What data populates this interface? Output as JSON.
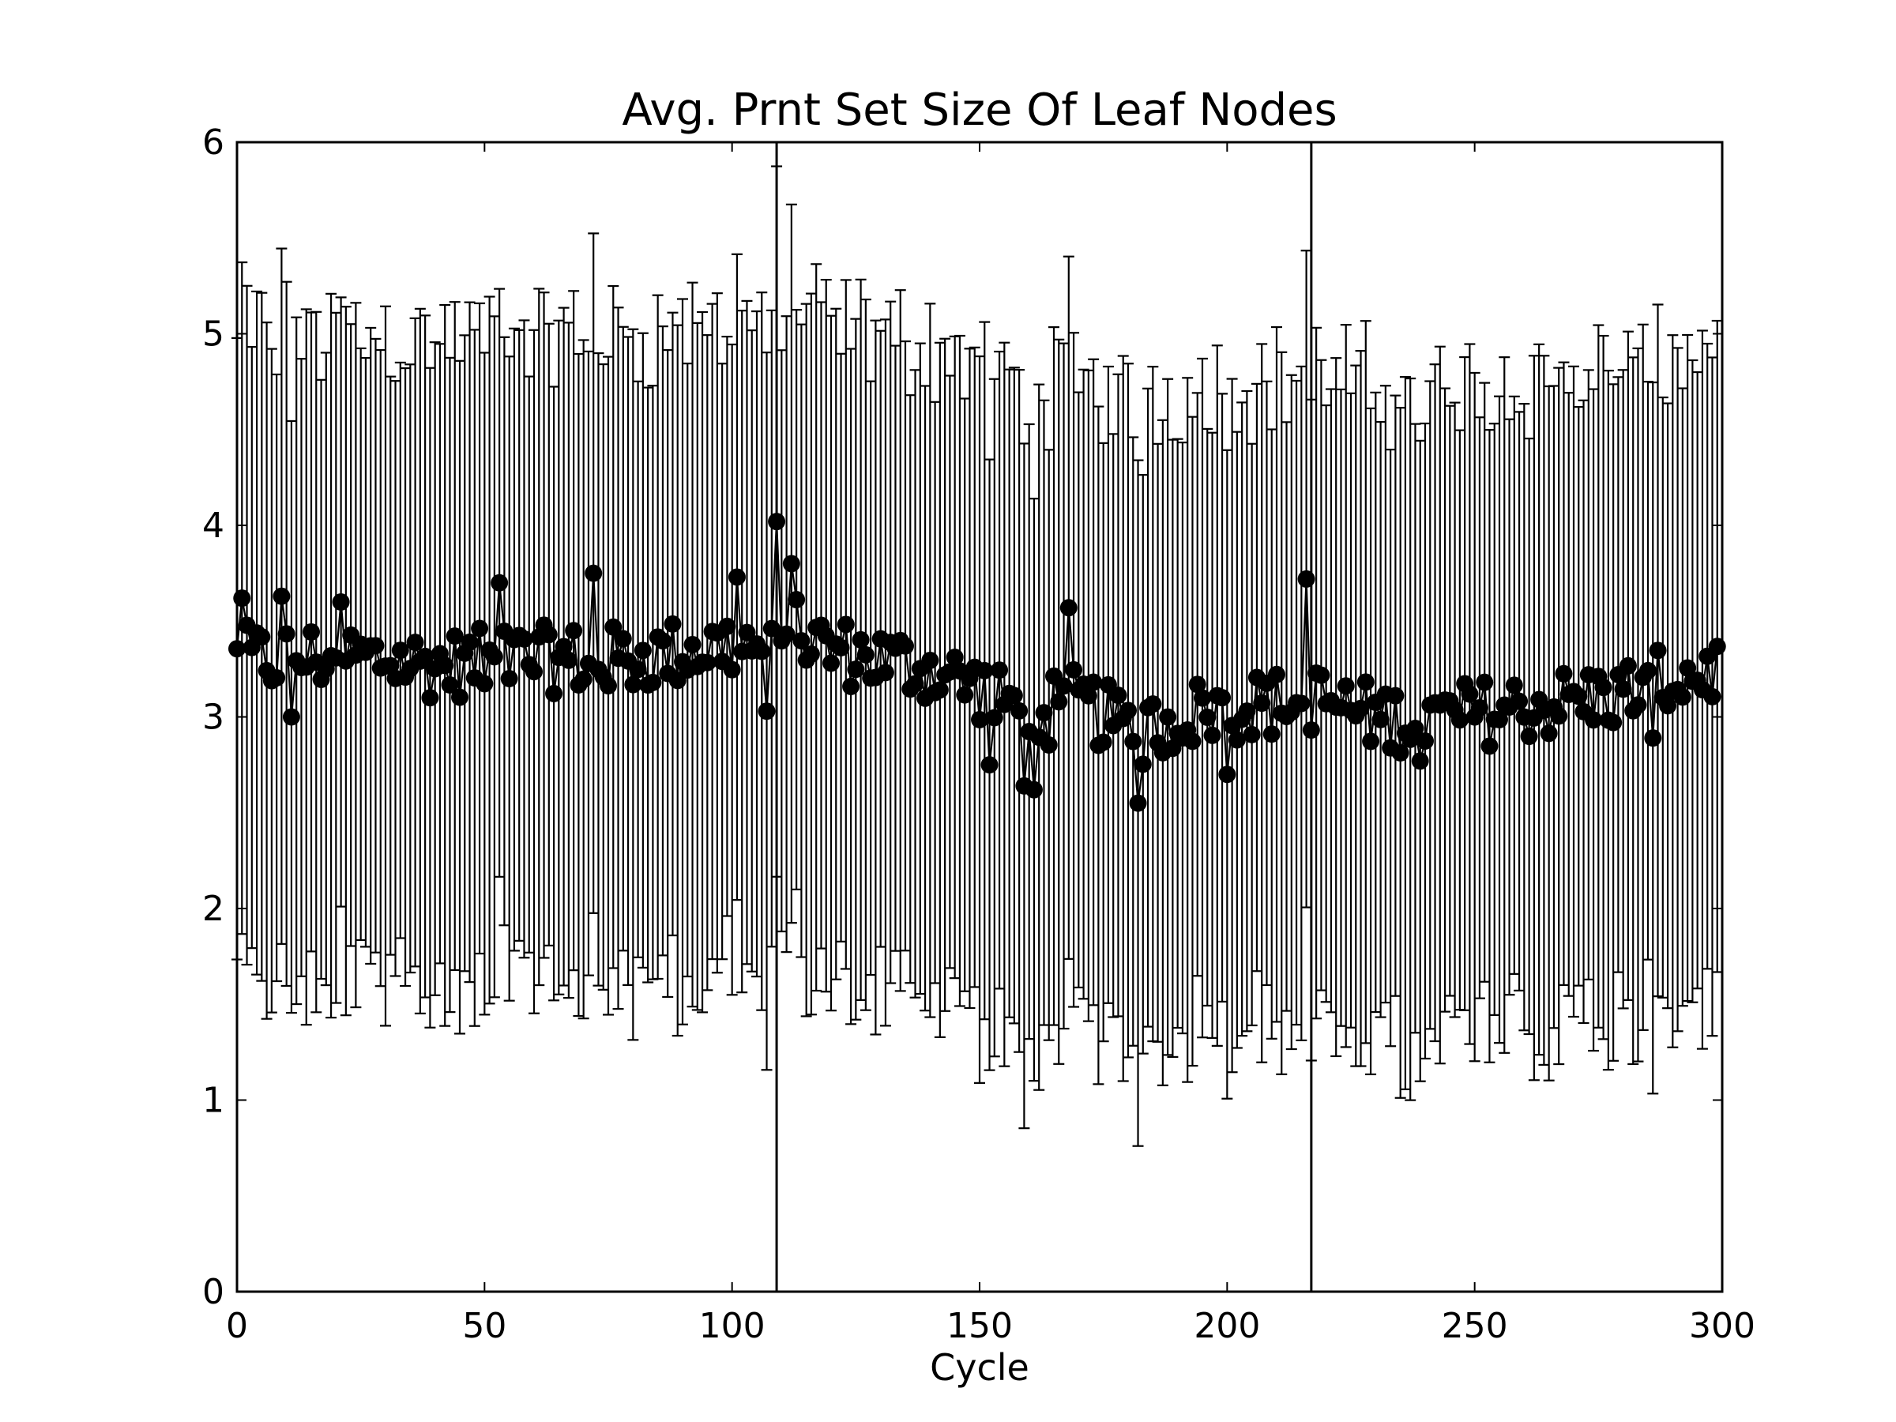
{
  "chart_data": {
    "type": "scatter",
    "title": "Avg. Prnt Set Size Of Leaf Nodes",
    "xlabel": "Cycle",
    "ylabel": "",
    "xlim": [
      0,
      300
    ],
    "ylim": [
      0,
      6
    ],
    "xticks": [
      "0",
      "50",
      "100",
      "150",
      "200",
      "250",
      "300"
    ],
    "yticks": [
      "0",
      "1",
      "2",
      "3",
      "4",
      "5",
      "6"
    ],
    "grid": false,
    "vertical_lines": [
      109,
      217
    ],
    "marker": "filled-circle",
    "error_bars": true,
    "color": "#000000",
    "series_spec": {
      "x_start": 0,
      "x_end": 299,
      "error_half_width": 1.7,
      "control_points": [
        [
          0,
          3.3
        ],
        [
          10,
          3.3
        ],
        [
          20,
          3.32
        ],
        [
          40,
          3.27
        ],
        [
          60,
          3.3
        ],
        [
          80,
          3.3
        ],
        [
          100,
          3.38
        ],
        [
          108,
          3.42
        ],
        [
          110,
          3.48
        ],
        [
          120,
          3.35
        ],
        [
          140,
          3.25
        ],
        [
          150,
          3.15
        ],
        [
          160,
          3.0
        ],
        [
          170,
          3.08
        ],
        [
          182,
          2.9
        ],
        [
          190,
          3.0
        ],
        [
          200,
          3.05
        ],
        [
          215,
          3.08
        ],
        [
          217,
          3.1
        ],
        [
          230,
          3.0
        ],
        [
          240,
          2.98
        ],
        [
          260,
          3.05
        ],
        [
          280,
          3.12
        ],
        [
          299,
          3.25
        ]
      ],
      "notable_points": [
        [
          1,
          3.62
        ],
        [
          9,
          3.63
        ],
        [
          11,
          3.0
        ],
        [
          21,
          3.6
        ],
        [
          53,
          3.7
        ],
        [
          72,
          3.75
        ],
        [
          101,
          3.73
        ],
        [
          107,
          3.03
        ],
        [
          109,
          4.02
        ],
        [
          112,
          3.8
        ],
        [
          152,
          2.75
        ],
        [
          159,
          2.64
        ],
        [
          161,
          2.62
        ],
        [
          168,
          3.57
        ],
        [
          182,
          2.55
        ],
        [
          200,
          2.7
        ],
        [
          216,
          3.72
        ],
        [
          239,
          2.77
        ],
        [
          286,
          2.89
        ]
      ]
    }
  }
}
